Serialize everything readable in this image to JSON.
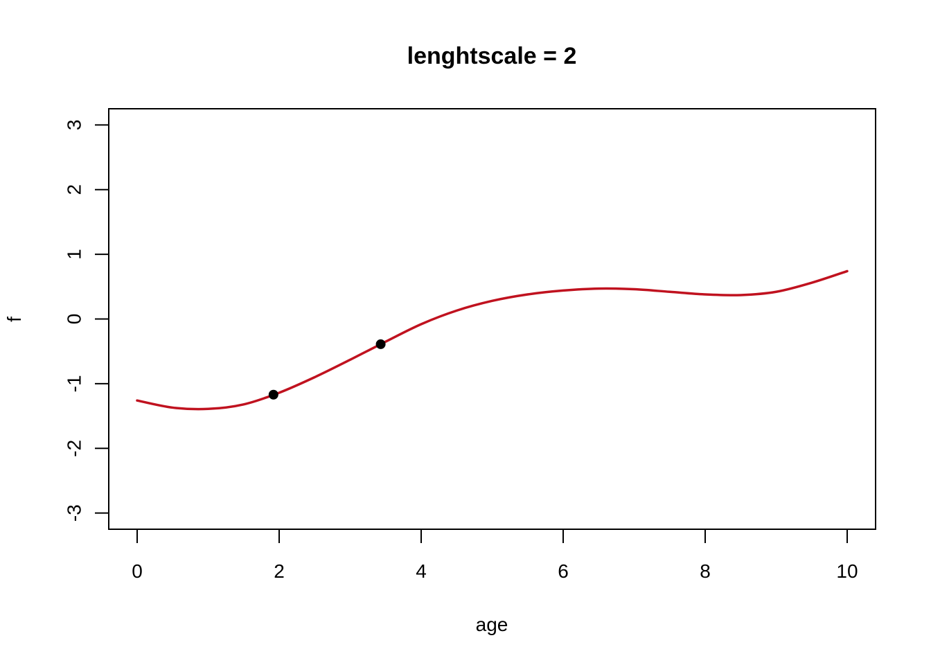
{
  "chart_data": {
    "type": "line",
    "title": "lenghtscale = 2",
    "xlabel": "age",
    "ylabel": "f",
    "xlim": [
      -0.4,
      10.4
    ],
    "ylim": [
      -3.25,
      3.25
    ],
    "x_ticks": [
      0,
      2,
      4,
      6,
      8,
      10
    ],
    "y_ticks": [
      -3,
      -2,
      -1,
      0,
      1,
      2,
      3
    ],
    "x_tick_labels": [
      "0",
      "2",
      "4",
      "6",
      "8",
      "10"
    ],
    "y_tick_labels": [
      "-3",
      "-2",
      "-1",
      "0",
      "1",
      "2",
      "3"
    ],
    "grid": false,
    "legend": "none",
    "series": [
      {
        "color": "#c0121f",
        "kind": "line",
        "x": [
          0,
          0.5,
          1.0,
          1.5,
          2.0,
          2.5,
          3.0,
          3.5,
          4.0,
          4.5,
          5.0,
          5.5,
          6.0,
          6.5,
          7.0,
          7.5,
          8.0,
          8.5,
          9.0,
          9.5,
          10.0
        ],
        "y": [
          -1.26,
          -1.37,
          -1.39,
          -1.32,
          -1.14,
          -0.9,
          -0.63,
          -0.35,
          -0.08,
          0.13,
          0.28,
          0.38,
          0.44,
          0.47,
          0.46,
          0.42,
          0.38,
          0.37,
          0.42,
          0.56,
          0.74
        ]
      },
      {
        "color": "#000000",
        "kind": "points",
        "x": [
          1.92,
          3.43
        ],
        "y": [
          -1.17,
          -0.39
        ]
      }
    ]
  }
}
